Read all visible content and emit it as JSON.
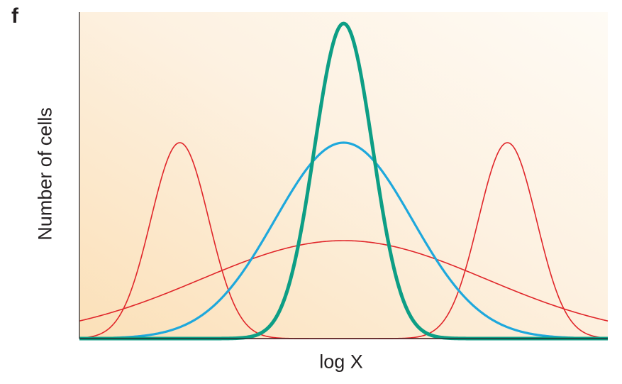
{
  "panel_label": "f",
  "chart_data": {
    "type": "line",
    "xlabel": "log X",
    "ylabel": "Number of cells",
    "xlim": [
      0,
      1
    ],
    "ylim": [
      0,
      1
    ],
    "ticks": "none",
    "legend": "none",
    "background": "gradient peach (bottom-left) to cream (top-right)",
    "series": [
      {
        "kind": "gaussian",
        "center": 0.19,
        "peak": 0.6,
        "width": 0.055,
        "color": "#e0262a",
        "stroke": "thin"
      },
      {
        "kind": "gaussian",
        "center": 0.81,
        "peak": 0.6,
        "width": 0.055,
        "color": "#e0262a",
        "stroke": "thin"
      },
      {
        "kind": "gaussian",
        "center": 0.5,
        "peak": 0.3,
        "width": 0.27,
        "color": "#e0262a",
        "stroke": "thin"
      },
      {
        "kind": "gaussian",
        "center": 0.5,
        "peak": 0.6,
        "width": 0.13,
        "color": "#1ea8dc",
        "stroke": "medium"
      },
      {
        "kind": "gaussian",
        "center": 0.5,
        "peak": 0.965,
        "width": 0.055,
        "color": "#0d9e85",
        "stroke": "thick"
      }
    ]
  }
}
